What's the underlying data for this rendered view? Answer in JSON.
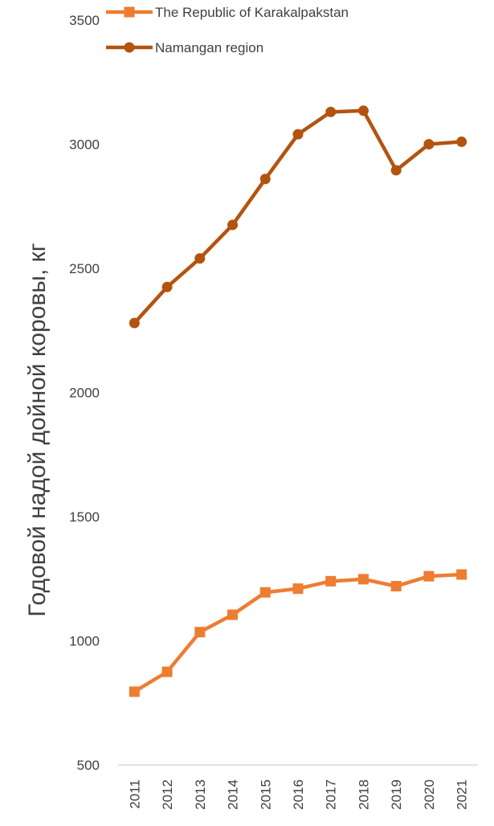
{
  "chart_data": {
    "type": "line",
    "title": "",
    "xlabel": "",
    "ylabel": "Годовой надой дойной коровы, кг",
    "categories": [
      "2011",
      "2012",
      "2013",
      "2014",
      "2015",
      "2016",
      "2017",
      "2018",
      "2019",
      "2020",
      "2021"
    ],
    "ylim": [
      500,
      3500
    ],
    "yticks": [
      "500",
      "1000",
      "1500",
      "2000",
      "2500",
      "3000",
      "3500"
    ],
    "grid": false,
    "legend_position": "top",
    "series": [
      {
        "name": "The Republic of Karakalpakstan",
        "marker": "square",
        "color": "#ED7D31",
        "values": [
          795,
          875,
          1035,
          1105,
          1195,
          1210,
          1240,
          1248,
          1220,
          1260,
          1267
        ]
      },
      {
        "name": "Namangan region",
        "marker": "circle",
        "color": "#B4530F",
        "values": [
          2280,
          2425,
          2540,
          2675,
          2860,
          3040,
          3130,
          3135,
          2895,
          3000,
          3010
        ]
      }
    ]
  }
}
